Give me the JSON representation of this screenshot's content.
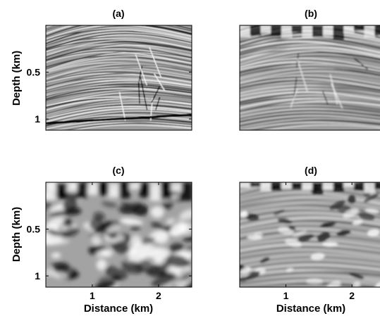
{
  "chart_data": [
    {
      "type": "heatmap",
      "title": "(a)",
      "xlabel": "",
      "ylabel": "Depth (km)",
      "xlim": [
        0.3,
        2.5
      ],
      "ylim": [
        0.0,
        1.12
      ],
      "xticks": [],
      "yticks": [
        0.5,
        1
      ],
      "ytick_labels": [
        "0.5",
        "1"
      ],
      "colormap": "grayscale",
      "image": "seismic-true-reflectivity"
    },
    {
      "type": "heatmap",
      "title": "(b)",
      "xlabel": "",
      "ylabel": "",
      "xlim": [
        0.3,
        2.5
      ],
      "ylim": [
        0.0,
        1.12
      ],
      "xticks": [],
      "yticks": [],
      "colormap": "grayscale",
      "image": "seismic-migrated-image"
    },
    {
      "type": "heatmap",
      "title": "(c)",
      "xlabel": "Distance (km)",
      "ylabel": "Depth (km)",
      "xlim": [
        0.3,
        2.5
      ],
      "ylim": [
        0.0,
        1.12
      ],
      "xticks": [
        1,
        2
      ],
      "xtick_labels": [
        "1",
        "2"
      ],
      "yticks": [
        0.5,
        1
      ],
      "ytick_labels": [
        "0.5",
        "1"
      ],
      "colormap": "grayscale",
      "image": "seismic-low-resolution-image"
    },
    {
      "type": "heatmap",
      "title": "(d)",
      "xlabel": "Distance (km)",
      "ylabel": "",
      "xlim": [
        0.3,
        2.5
      ],
      "ylim": [
        0.0,
        1.12
      ],
      "xticks": [
        1,
        2
      ],
      "xtick_labels": [
        "1",
        "2"
      ],
      "yticks": [],
      "colormap": "grayscale",
      "image": "seismic-inverted-image"
    }
  ]
}
